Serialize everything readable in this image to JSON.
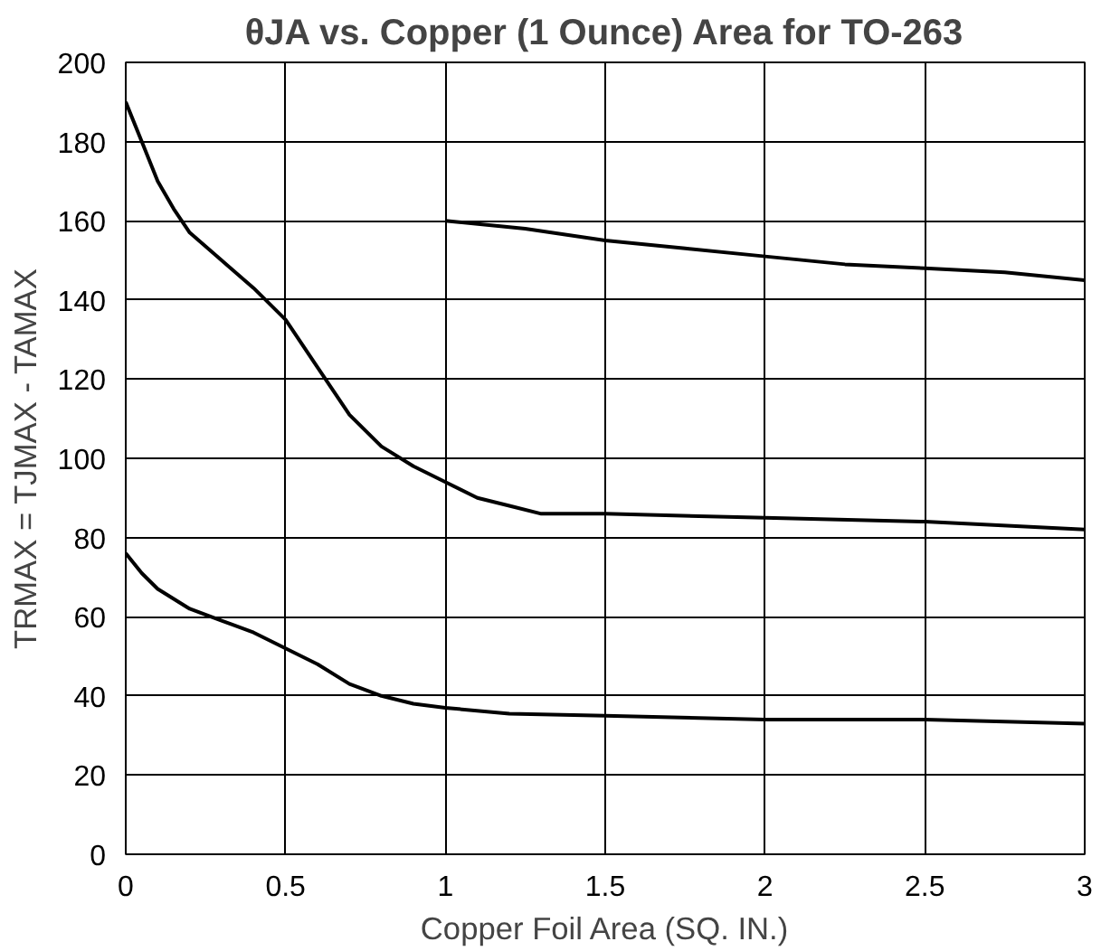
{
  "chart_data": {
    "type": "line",
    "title": "θJA vs. Copper (1 Ounce) Area for TO-263",
    "xlabel": "Copper Foil Area (SQ. IN.)",
    "ylabel": "TRMAX = TJMAX - TAMAX",
    "series": [
      {
        "color": "#000000",
        "x": [
          1,
          1.25,
          1.5,
          1.75,
          2,
          2.25,
          2.5,
          2.75,
          3
        ],
        "values": [
          160,
          158,
          155,
          153,
          151,
          149,
          148,
          147,
          145
        ]
      },
      {
        "color": "#000000",
        "x": [
          0,
          0.05,
          0.1,
          0.15,
          0.2,
          0.3,
          0.4,
          0.5,
          0.6,
          0.7,
          0.8,
          0.9,
          1.0,
          1.1,
          1.2,
          1.3,
          1.5,
          2,
          2.5,
          3
        ],
        "values": [
          190,
          180,
          170,
          163,
          157,
          150,
          143,
          135,
          123,
          111,
          103,
          98,
          94,
          90,
          88,
          86,
          86,
          85,
          84,
          82
        ]
      },
      {
        "color": "#000000",
        "x": [
          0,
          0.05,
          0.1,
          0.2,
          0.3,
          0.4,
          0.5,
          0.6,
          0.7,
          0.8,
          0.9,
          1.0,
          1.2,
          1.5,
          2,
          2.5,
          3
        ],
        "values": [
          76,
          71,
          67,
          62,
          59,
          56,
          52,
          48,
          43,
          40,
          38,
          37,
          35.5,
          35,
          34,
          34,
          33
        ]
      }
    ],
    "xlim": [
      0,
      3
    ],
    "xticks": [
      0,
      0.5,
      1,
      1.5,
      2,
      2.5,
      3
    ],
    "ylim": [
      0,
      200
    ],
    "yticks": [
      0,
      20,
      40,
      60,
      80,
      100,
      120,
      140,
      160,
      180,
      200
    ],
    "grid": true,
    "marker": "none",
    "line_style": "solid"
  }
}
